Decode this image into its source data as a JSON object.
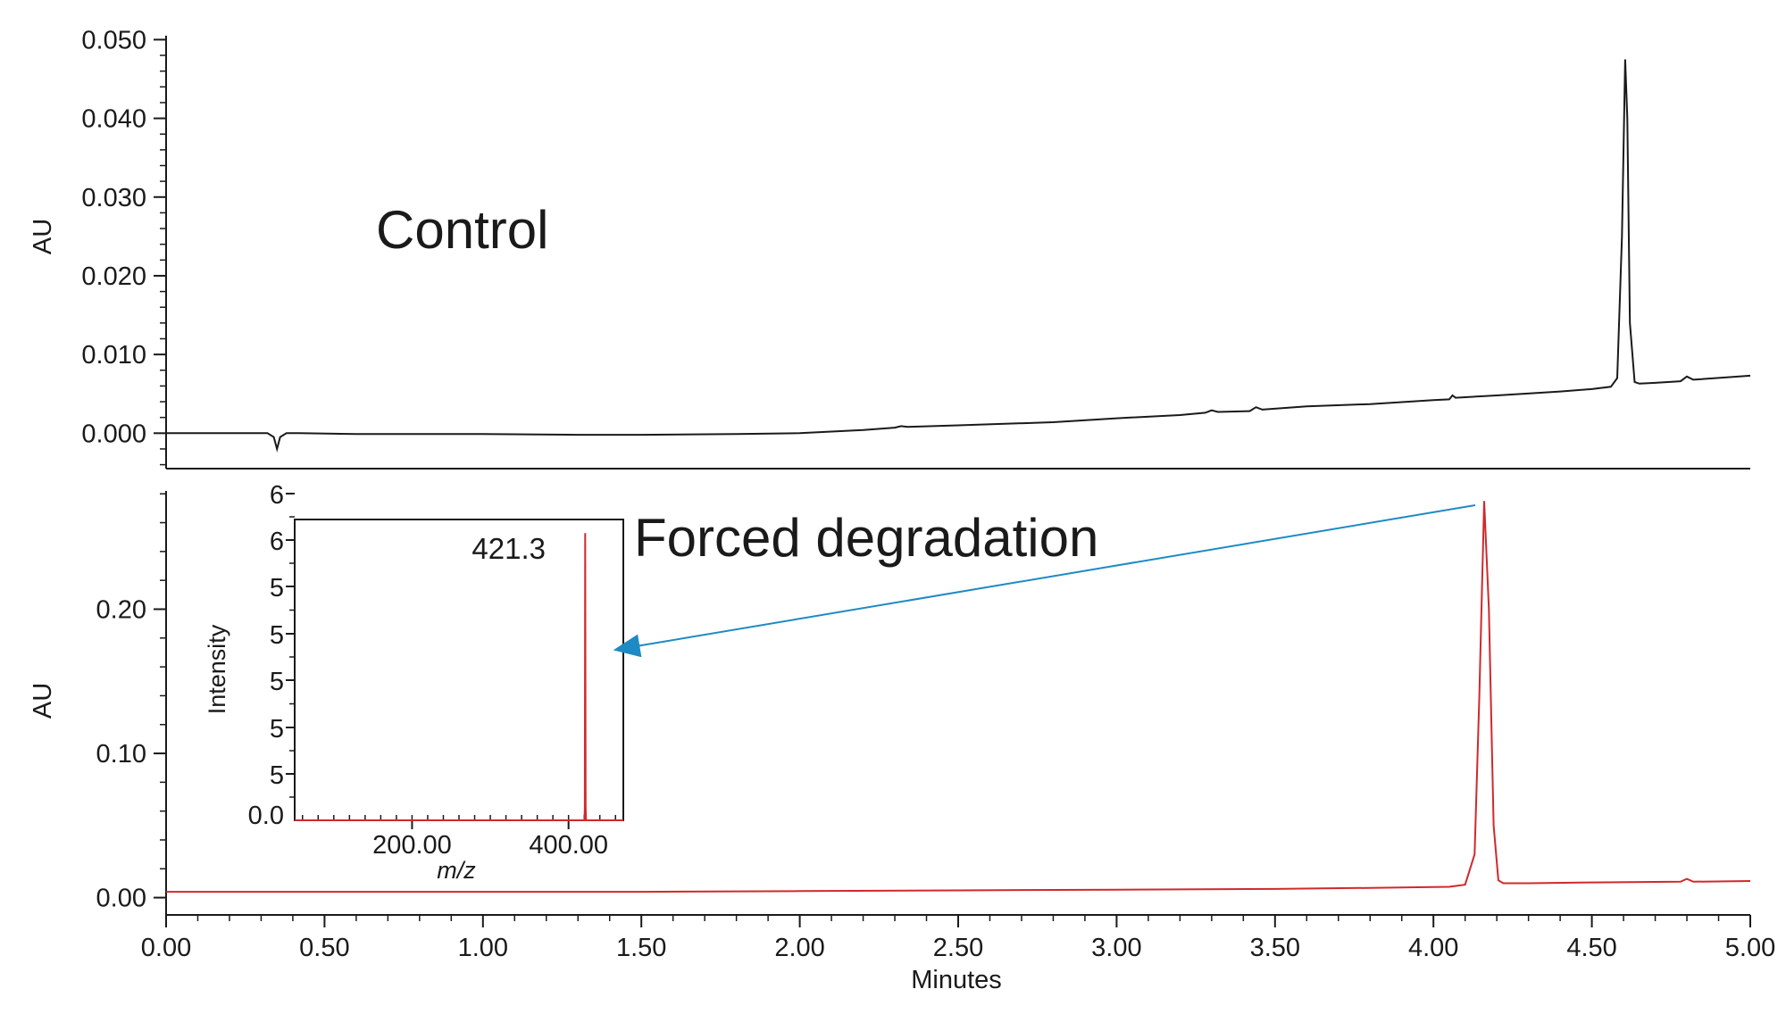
{
  "colors": {
    "control_trace": "#1a1a1a",
    "degradation_trace": "#d0292c",
    "annotation_arrow": "#1d8ac4",
    "peak_label": "#d0292c"
  },
  "chart_data": [
    {
      "type": "line",
      "name": "control-chromatogram",
      "panel_label": "Control",
      "xlabel": "",
      "ylabel": "AU",
      "xlim": [
        0.0,
        5.0
      ],
      "ylim": [
        -0.0045,
        0.0505
      ],
      "y_ticks": [
        "0.000",
        "0.010",
        "0.020",
        "0.030",
        "0.040",
        "0.050"
      ],
      "grid": false,
      "series": [
        {
          "x": [
            0.0,
            0.3,
            0.32,
            0.34,
            0.35,
            0.36,
            0.38,
            0.42,
            0.6,
            1.0,
            1.3,
            1.5,
            1.8,
            2.0,
            2.2,
            2.3,
            2.32,
            2.34,
            2.5,
            2.8,
            3.0,
            3.2,
            3.28,
            3.3,
            3.32,
            3.42,
            3.44,
            3.46,
            3.6,
            3.8,
            4.0,
            4.05,
            4.06,
            4.07,
            4.2,
            4.4,
            4.5,
            4.56,
            4.58,
            4.595,
            4.605,
            4.612,
            4.62,
            4.635,
            4.65,
            4.7,
            4.78,
            4.8,
            4.82,
            5.0
          ],
          "y": [
            0.0,
            0.0,
            0.0,
            -0.0005,
            -0.002,
            -0.0005,
            0.0,
            0.0,
            -0.0001,
            -0.0001,
            -0.0002,
            -0.0002,
            -0.0001,
            0.0,
            0.0004,
            0.0007,
            0.0009,
            0.0008,
            0.001,
            0.0014,
            0.0019,
            0.0023,
            0.0026,
            0.0029,
            0.0027,
            0.0028,
            0.0033,
            0.003,
            0.0034,
            0.0037,
            0.0042,
            0.0043,
            0.0048,
            0.0045,
            0.0048,
            0.0053,
            0.0056,
            0.0059,
            0.007,
            0.025,
            0.0475,
            0.04,
            0.014,
            0.0065,
            0.0063,
            0.0064,
            0.0066,
            0.0072,
            0.0068,
            0.0073
          ]
        }
      ]
    },
    {
      "type": "line",
      "name": "forced-degradation-chromatogram",
      "panel_label": "Forced degradation",
      "xlabel": "Minutes",
      "ylabel": "AU",
      "xlim": [
        0.0,
        5.0
      ],
      "ylim": [
        -0.012,
        0.282
      ],
      "x_ticks": [
        "0.00",
        "0.50",
        "1.00",
        "1.50",
        "2.00",
        "2.50",
        "3.00",
        "3.50",
        "4.00",
        "4.50",
        "5.00"
      ],
      "y_ticks": [
        "0.00",
        "0.10",
        "0.20"
      ],
      "grid": false,
      "series": [
        {
          "x": [
            0.0,
            0.5,
            1.0,
            1.5,
            2.0,
            2.5,
            3.0,
            3.5,
            3.9,
            4.05,
            4.1,
            4.13,
            4.145,
            4.16,
            4.175,
            4.19,
            4.205,
            4.22,
            4.3,
            4.5,
            4.78,
            4.8,
            4.82,
            5.0
          ],
          "y": [
            0.004,
            0.004,
            0.004,
            0.004,
            0.0045,
            0.005,
            0.0055,
            0.006,
            0.007,
            0.0075,
            0.009,
            0.03,
            0.14,
            0.275,
            0.2,
            0.05,
            0.012,
            0.01,
            0.01,
            0.0105,
            0.011,
            0.013,
            0.011,
            0.0115
          ]
        }
      ],
      "arrow_from_x": 4.15
    },
    {
      "type": "line",
      "name": "mass-spectrum-inset",
      "xlabel": "m/z",
      "ylabel": "Intensity",
      "x_ticks": [
        "200.00",
        "400.00"
      ],
      "x_tick_values": [
        200,
        400
      ],
      "xlim": [
        50,
        470
      ],
      "y_ticks": [
        "0.0",
        "5",
        "5",
        "5",
        "5",
        "5",
        "6",
        "6"
      ],
      "peak_label": "421.3",
      "series": [
        {
          "x": [
            50,
            420.3,
            420.8,
            421.3,
            421.8,
            422.3,
            470
          ],
          "y": [
            0,
            0,
            0.3,
            6.3,
            0.3,
            0,
            0
          ]
        }
      ]
    }
  ]
}
